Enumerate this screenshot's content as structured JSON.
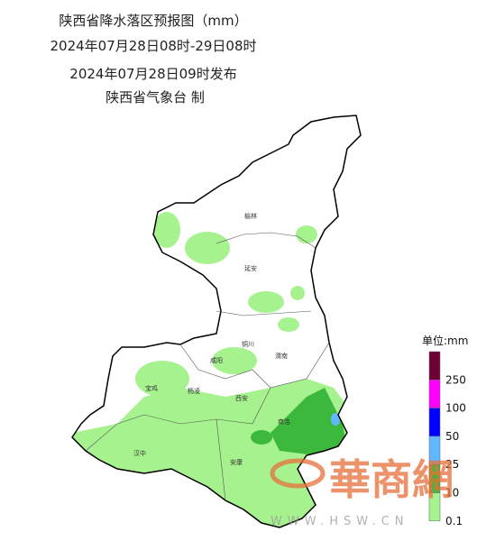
{
  "header": {
    "title": "陕西省降水落区预报图（mm）",
    "period": "2024年07月28日08时-29日08时",
    "issued": "2024年07月28日09时发布",
    "agency": "陕西省气象台 制"
  },
  "cities": [
    {
      "label": "榆林"
    },
    {
      "label": "延安"
    },
    {
      "label": "铜川"
    },
    {
      "label": "渭南"
    },
    {
      "label": "咸阳"
    },
    {
      "label": "宝鸡"
    },
    {
      "label": "杨凌"
    },
    {
      "label": "西安"
    },
    {
      "label": "商洛"
    },
    {
      "label": "汉中"
    },
    {
      "label": "安康"
    }
  ],
  "legend": {
    "title": "单位:mm",
    "colors": [
      "#6e0035",
      "#ff00ff",
      "#0000ff",
      "#61b8ff",
      "#3cb93c",
      "#a6f28f"
    ],
    "labels": [
      "250",
      "100",
      "50",
      "25",
      "10",
      "0.1"
    ]
  },
  "watermark": {
    "logo": "華商網",
    "url": "WWW.HSW.CN"
  }
}
